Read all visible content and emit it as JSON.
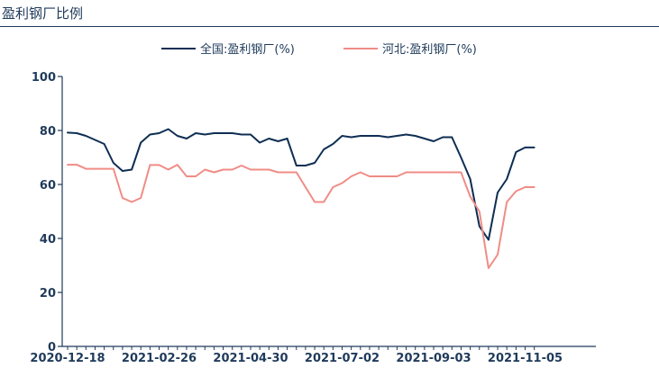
{
  "header": {
    "title": "盈利钢厂比例"
  },
  "colors": {
    "navy": "#0e2e53",
    "pink": "#f08c86",
    "axis": "#1f3a5a"
  },
  "chart_data": {
    "type": "line",
    "title": "",
    "xlabel": "",
    "ylabel": "",
    "ylim": [
      0,
      100
    ],
    "yticks": [
      0,
      20,
      40,
      60,
      80,
      100
    ],
    "grid": false,
    "legend_position": "top-center",
    "x_tick_labels": [
      "2020-12-18",
      "2021-02-26",
      "2021-04-30",
      "2021-07-02",
      "2021-09-03",
      "2021-11-05"
    ],
    "x_tick_index": [
      0,
      10,
      20,
      30,
      40,
      50
    ],
    "series": [
      {
        "name": "全国:盈利钢厂(%)",
        "color": "#0e2e53",
        "values": [
          79.2,
          79.0,
          78.0,
          76.5,
          75.0,
          68.0,
          65.0,
          65.5,
          75.5,
          78.5,
          79.0,
          80.5,
          78.0,
          77.0,
          79.0,
          78.5,
          79.0,
          79.0,
          79.0,
          78.5,
          78.5,
          75.5,
          77.0,
          76.0,
          77.0,
          67.0,
          67.0,
          68.0,
          73.0,
          75.0,
          78.0,
          77.5,
          78.0,
          78.0,
          78.0,
          77.5,
          78.0,
          78.5,
          78.0,
          77.0,
          76.0,
          77.5,
          77.5,
          70.0,
          62.0,
          44.5,
          39.5,
          57.0,
          62.0,
          72.0,
          73.7,
          73.7
        ]
      },
      {
        "name": "河北:盈利钢厂(%)",
        "color": "#f08c86",
        "values": [
          67.3,
          67.3,
          65.8,
          65.8,
          65.8,
          65.8,
          55.0,
          53.5,
          55.0,
          67.2,
          67.2,
          65.5,
          67.3,
          63.0,
          63.0,
          65.5,
          64.5,
          65.5,
          65.5,
          67.0,
          65.5,
          65.5,
          65.5,
          64.5,
          64.5,
          64.5,
          59.0,
          53.5,
          53.5,
          59.0,
          60.5,
          63.0,
          64.5,
          63.0,
          63.0,
          63.0,
          63.0,
          64.5,
          64.5,
          64.5,
          64.5,
          64.5,
          64.5,
          64.5,
          55.5,
          50.0,
          29.0,
          34.0,
          53.5,
          57.5,
          59.0,
          59.0
        ]
      }
    ]
  }
}
